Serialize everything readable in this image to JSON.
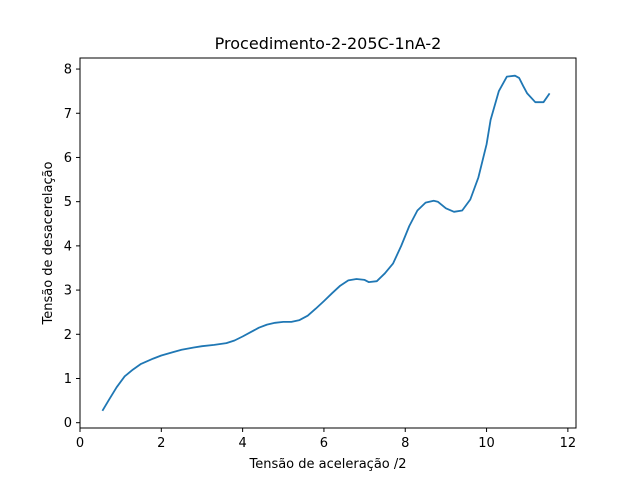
{
  "chart_data": {
    "type": "line",
    "title": "Procedimento-2-205C-1nA-2",
    "xlabel": "Tensão de aceleração /2",
    "ylabel": "Tensão de desacerelação",
    "xlim": [
      0,
      12.2
    ],
    "ylim": [
      -0.12,
      8.25
    ],
    "x_ticks": [
      0,
      2,
      4,
      6,
      8,
      10,
      12
    ],
    "y_ticks": [
      0,
      1,
      2,
      3,
      4,
      5,
      6,
      7,
      8
    ],
    "grid": false,
    "legend": "none",
    "colors": {
      "line": "#1f77b4",
      "axes": "#000000",
      "background": "#ffffff"
    },
    "series": [
      {
        "x": [
          0.55,
          0.7,
          0.9,
          1.1,
          1.3,
          1.5,
          1.8,
          2.0,
          2.3,
          2.5,
          2.8,
          3.0,
          3.3,
          3.6,
          3.8,
          4.0,
          4.2,
          4.4,
          4.6,
          4.8,
          5.0,
          5.2,
          5.4,
          5.6,
          5.8,
          6.0,
          6.2,
          6.4,
          6.6,
          6.8,
          7.0,
          7.1,
          7.3,
          7.5,
          7.7,
          7.9,
          8.1,
          8.3,
          8.5,
          8.7,
          8.8,
          9.0,
          9.2,
          9.4,
          9.6,
          9.8,
          10.0,
          10.1,
          10.3,
          10.5,
          10.7,
          10.8,
          10.9,
          11.0,
          11.2,
          11.4,
          11.55
        ],
        "y": [
          0.27,
          0.5,
          0.8,
          1.05,
          1.2,
          1.33,
          1.45,
          1.52,
          1.6,
          1.65,
          1.7,
          1.73,
          1.76,
          1.8,
          1.86,
          1.95,
          2.05,
          2.15,
          2.22,
          2.26,
          2.28,
          2.28,
          2.32,
          2.42,
          2.58,
          2.75,
          2.93,
          3.1,
          3.22,
          3.25,
          3.23,
          3.18,
          3.2,
          3.38,
          3.6,
          4.0,
          4.45,
          4.8,
          4.98,
          5.02,
          5.0,
          4.85,
          4.77,
          4.8,
          5.05,
          5.55,
          6.3,
          6.85,
          7.5,
          7.83,
          7.85,
          7.8,
          7.62,
          7.45,
          7.25,
          7.25,
          7.45
        ]
      }
    ]
  }
}
